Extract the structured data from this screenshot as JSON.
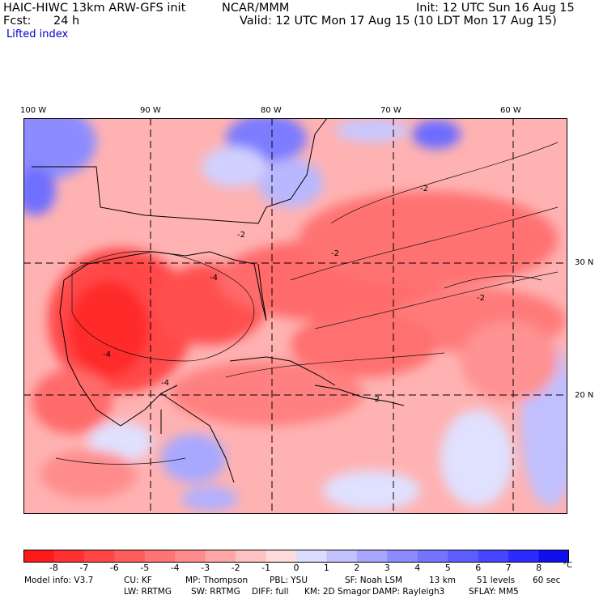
{
  "header": {
    "model_line": "HAIC-HIWC 13km ARW-GFS init",
    "org": "NCAR/MMM",
    "init": "Init: 12 UTC Sun 16 Aug 15",
    "fcst_label": "Fcst:",
    "fcst_value": "24 h",
    "valid": "Valid: 12 UTC Mon 17 Aug 15 (10 LDT Mon 17 Aug 15)",
    "field": "Lifted index"
  },
  "map": {
    "longitude_labels": [
      "100 W",
      "90 W",
      "80 W",
      "70 W",
      "60 W"
    ],
    "latitude_labels": [
      "30 N",
      "20 N"
    ],
    "contour_labels": [
      "-2",
      "-2",
      "-2",
      "-2",
      "-4",
      "-4",
      "-4",
      "-2"
    ]
  },
  "colorbar": {
    "tick_labels": [
      "-8",
      "-7",
      "-6",
      "-5",
      "-4",
      "-3",
      "-2",
      "-1",
      "0",
      "1",
      "2",
      "3",
      "4",
      "5",
      "6",
      "7",
      "8"
    ],
    "unit": "°C",
    "colors": [
      "#ff1a1a",
      "#ff3030",
      "#ff4646",
      "#ff5c5c",
      "#ff7474",
      "#ff8c8c",
      "#ffa6a6",
      "#ffc2c2",
      "#ffdcdc",
      "#dcdcff",
      "#c2c2ff",
      "#a6a6ff",
      "#8c8cff",
      "#7474ff",
      "#5c5cff",
      "#4646ff",
      "#2b2bff",
      "#1010ee"
    ]
  },
  "footer": {
    "line1": [
      "Model info: V3.7",
      "CU: KF",
      "MP: Thompson",
      "PBL: YSU",
      "SF: Noah LSM",
      "13 km",
      "51 levels",
      "60 sec"
    ],
    "line2": [
      "LW: RRTMG",
      "SW: RRTMG",
      "DIFF: full",
      "KM: 2D Smagor",
      "DAMP: Rayleigh3",
      "SFLAY: MM5"
    ]
  }
}
